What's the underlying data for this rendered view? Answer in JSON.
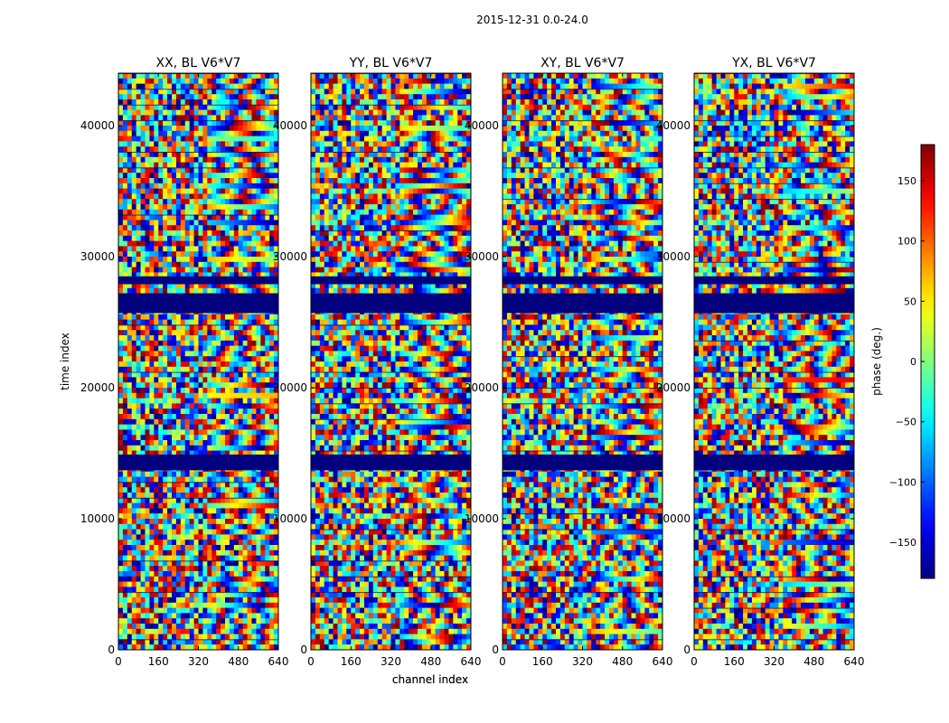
{
  "figure": {
    "suptitle": "2015-12-31 0.0-24.0"
  },
  "colors": {
    "jet": [
      "#00007f",
      "#0000ff",
      "#007fff",
      "#00ffff",
      "#7fff7f",
      "#ffff00",
      "#ff7f00",
      "#ff0000",
      "#7f0000"
    ],
    "flag_band": "#00007f"
  },
  "chart_data": [
    {
      "type": "heatmap",
      "title": "XX, BL V6*V7",
      "xlabel": "channel index",
      "ylabel": "time index",
      "xlim": [
        0,
        640
      ],
      "ylim": [
        0,
        44000
      ],
      "xticks": [
        0,
        160,
        320,
        480,
        640
      ],
      "yticks": [
        0,
        10000,
        20000,
        30000,
        40000
      ],
      "value": "phase (deg.)",
      "flagged_time_ranges": [
        [
          13700,
          14900
        ],
        [
          25700,
          27200
        ],
        [
          27900,
          28500
        ]
      ]
    },
    {
      "type": "heatmap",
      "title": "YY, BL V6*V7",
      "xlabel": "channel index",
      "ylabel": "",
      "xlim": [
        0,
        640
      ],
      "ylim": [
        0,
        44000
      ],
      "xticks": [
        0,
        160,
        320,
        480,
        640
      ],
      "yticks": [
        0,
        10000,
        20000,
        30000,
        40000
      ],
      "value": "phase (deg.)",
      "flagged_time_ranges": [
        [
          13700,
          14900
        ],
        [
          25700,
          27200
        ],
        [
          27900,
          28500
        ]
      ]
    },
    {
      "type": "heatmap",
      "title": "XY, BL V6*V7",
      "xlabel": "",
      "ylabel": "",
      "xlim": [
        0,
        640
      ],
      "ylim": [
        0,
        44000
      ],
      "xticks": [
        0,
        160,
        320,
        480,
        640
      ],
      "yticks": [
        0,
        10000,
        20000,
        30000,
        40000
      ],
      "value": "phase (deg.)",
      "flagged_time_ranges": [
        [
          13700,
          14900
        ],
        [
          25700,
          27200
        ],
        [
          27900,
          28500
        ]
      ]
    },
    {
      "type": "heatmap",
      "title": "YX, BL V6*V7",
      "xlabel": "",
      "ylabel": "",
      "xlim": [
        0,
        640
      ],
      "ylim": [
        0,
        44000
      ],
      "xticks": [
        0,
        160,
        320,
        480,
        640
      ],
      "yticks": [
        0,
        10000,
        20000,
        30000,
        40000
      ],
      "value": "phase (deg.)",
      "flagged_time_ranges": [
        [
          13700,
          14900
        ],
        [
          25700,
          27200
        ],
        [
          27900,
          28500
        ]
      ]
    }
  ],
  "colorbar": {
    "label": "phase (deg.)",
    "range": [
      -180,
      180
    ],
    "ticks": [
      -150,
      -100,
      -50,
      0,
      50,
      100,
      150
    ],
    "tick_labels": [
      "−150",
      "−100",
      "−50",
      "0",
      "50",
      "100",
      "150"
    ]
  }
}
